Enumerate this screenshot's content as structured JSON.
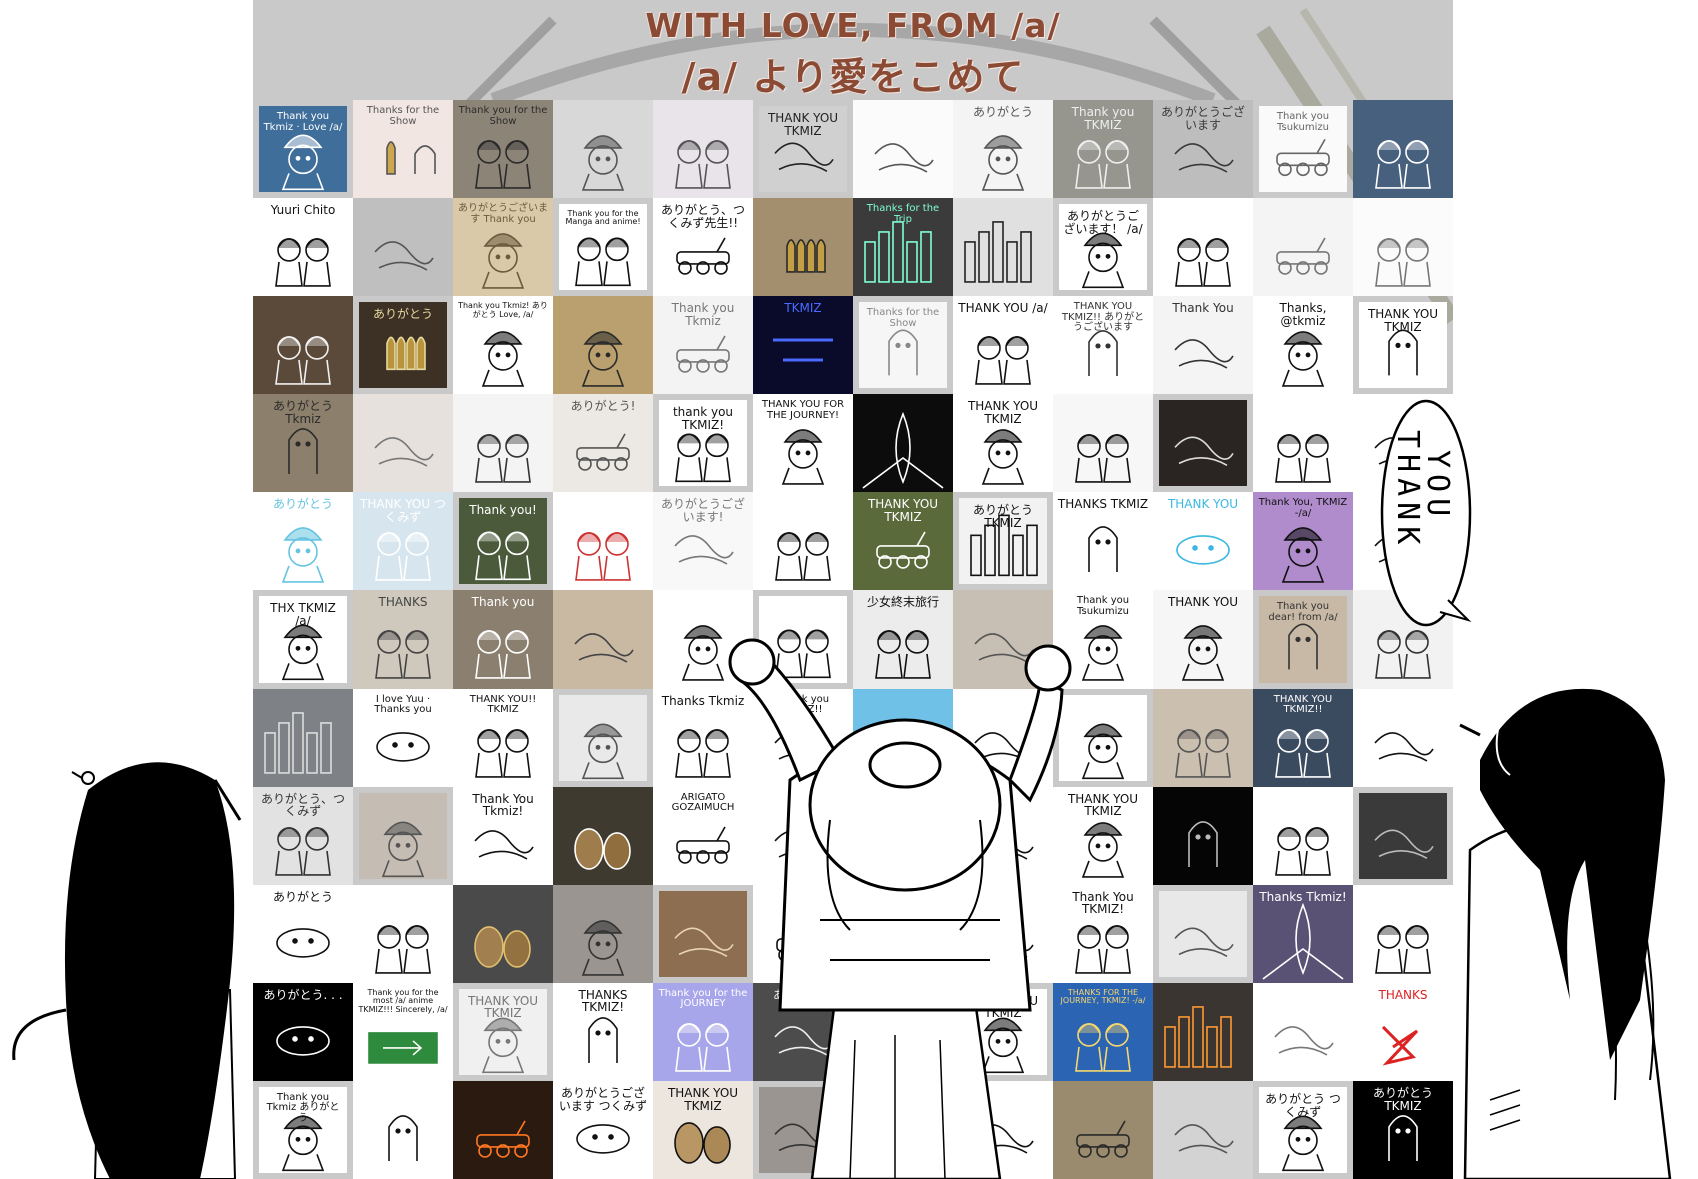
{
  "header": {
    "title_en": "WITH LOVE, FROM /a/",
    "title_jp": "/a/ より愛をこめて"
  },
  "bubble": {
    "line1": "THANK",
    "line2": "YOU"
  },
  "colors": {
    "title": "#8a4a34",
    "collage_bg": "#c9c9c9",
    "ink": "#000000"
  },
  "grid": {
    "columns": 12,
    "rows": 11
  },
  "tiles": [
    {
      "caption": "Thank you Tkmiz · Love /a/",
      "tone": "#3f6e9a",
      "ink": "#ffffff",
      "icon": "helmet-girl"
    },
    {
      "caption": "Thanks for the Show",
      "tone": "#f1e6e2",
      "ink": "#555555",
      "icon": "bullet-ghost"
    },
    {
      "caption": "Thank you for the Show",
      "tone": "#8d8478",
      "ink": "#2b2b2b",
      "icon": "two-girls"
    },
    {
      "caption": "",
      "tone": "#d8d8d8",
      "ink": "#555555",
      "icon": "helmet-girl"
    },
    {
      "caption": "",
      "tone": "#e8e4ea",
      "ink": "#555555",
      "icon": "two-girls"
    },
    {
      "caption": "THANK YOU TKMIZ",
      "tone": "#d0d0d0",
      "ink": "#222222",
      "icon": "sketch"
    },
    {
      "caption": "",
      "tone": "#fbfbfb",
      "ink": "#555555",
      "icon": "sketch"
    },
    {
      "caption": "ありがとう",
      "tone": "#f4f4f4",
      "ink": "#555555",
      "icon": "helmet-girl"
    },
    {
      "caption": "Thank you TKMIZ",
      "tone": "#96968f",
      "ink": "#eeeeee",
      "icon": "two-girls"
    },
    {
      "caption": "ありがとうございます",
      "tone": "#bdbdbd",
      "ink": "#3a3a3a",
      "icon": "sketch"
    },
    {
      "caption": "Thank you Tsukumizu",
      "tone": "#fafafa",
      "ink": "#666666",
      "icon": "kettenkrad"
    },
    {
      "caption": "",
      "tone": "#47607e",
      "ink": "#ffffff",
      "icon": "two-girls"
    },
    {
      "caption": "Yuuri Chito",
      "tone": "#ffffff",
      "ink": "#111111",
      "icon": "two-girls"
    },
    {
      "caption": "",
      "tone": "#bfbfbf",
      "ink": "#555555",
      "icon": "sketch"
    },
    {
      "caption": "ありがとうございます Thank you",
      "tone": "#d9c9a8",
      "ink": "#6b5a3c",
      "icon": "helmet-girl"
    },
    {
      "caption": "Thank you for the Manga and anime!",
      "tone": "#ffffff",
      "ink": "#111111",
      "icon": "two-girls"
    },
    {
      "caption": "ありがとう、つくみず先生!!",
      "tone": "#ffffff",
      "ink": "#111111",
      "icon": "kettenkrad"
    },
    {
      "caption": "",
      "tone": "#a38f6e",
      "ink": "#2a2a2a",
      "icon": "bullets"
    },
    {
      "caption": "Thanks for the Trip",
      "tone": "#3b3b3b",
      "ink": "#7fffd4",
      "icon": "city"
    },
    {
      "caption": "",
      "tone": "#e0e0e0",
      "ink": "#222222",
      "icon": "city"
    },
    {
      "caption": "ありがとうございます！ /a/",
      "tone": "#ffffff",
      "ink": "#111111",
      "icon": "helmet-girl"
    },
    {
      "caption": "",
      "tone": "#ffffff",
      "ink": "#111111",
      "icon": "two-girls"
    },
    {
      "caption": "",
      "tone": "#f4f4f4",
      "ink": "#777777",
      "icon": "kettenkrad"
    },
    {
      "caption": "",
      "tone": "#fbfbfb",
      "ink": "#777777",
      "icon": "two-girls"
    },
    {
      "caption": "",
      "tone": "#5b4a3a",
      "ink": "#f0f0f0",
      "icon": "two-girls"
    },
    {
      "caption": "ありがとう",
      "tone": "#3d3024",
      "ink": "#e6d9a0",
      "icon": "bullets"
    },
    {
      "caption": "Thank you Tkmiz! ありがとう Love, /a/",
      "tone": "#ffffff",
      "ink": "#111111",
      "icon": "helmet-girl"
    },
    {
      "caption": "",
      "tone": "#b9a06e",
      "ink": "#2a2a2a",
      "icon": "helmet-girl"
    },
    {
      "caption": "Thank you Tkmiz",
      "tone": "#f3f3f3",
      "ink": "#777777",
      "icon": "kettenkrad"
    },
    {
      "caption": "TKMIZ",
      "tone": "#0a0a2a",
      "ink": "#4a6bff",
      "icon": "neon"
    },
    {
      "caption": "Thanks for the Show",
      "tone": "#f6f6f6",
      "ink": "#888888",
      "icon": "ghost"
    },
    {
      "caption": "THANK YOU /a/",
      "tone": "#ffffff",
      "ink": "#111111",
      "icon": "two-girls"
    },
    {
      "caption": "THANK YOU TKMIZ!! ありがとうございます",
      "tone": "#ffffff",
      "ink": "#333333",
      "icon": "ghost"
    },
    {
      "caption": "Thank You",
      "tone": "#f4f4f4",
      "ink": "#333333",
      "icon": "sketch"
    },
    {
      "caption": "Thanks, @tkmiz",
      "tone": "#ffffff",
      "ink": "#111111",
      "icon": "helmet-girl"
    },
    {
      "caption": "THANK YOU TKMIZ",
      "tone": "#ffffff",
      "ink": "#111111",
      "icon": "ghost"
    },
    {
      "caption": "ありがとう Tkmiz",
      "tone": "#8c7f6c",
      "ink": "#2b2b2b",
      "icon": "ghost"
    },
    {
      "caption": "",
      "tone": "#e6e1dc",
      "ink": "#777777",
      "icon": "sketch"
    },
    {
      "caption": "",
      "tone": "#f4f4f4",
      "ink": "#333333",
      "icon": "two-girls"
    },
    {
      "caption": "ありがとう!",
      "tone": "#ece9e4",
      "ink": "#555555",
      "icon": "kettenkrad"
    },
    {
      "caption": "thank you TKMIZ!",
      "tone": "#ffffff",
      "ink": "#111111",
      "icon": "two-girls"
    },
    {
      "caption": "THANK YOU FOR THE JOURNEY!",
      "tone": "#ffffff",
      "ink": "#111111",
      "icon": "helmet-girl"
    },
    {
      "caption": "",
      "tone": "#0c0c0c",
      "ink": "#ffffff",
      "icon": "fish"
    },
    {
      "caption": "THANK YOU TKMIZ",
      "tone": "#ffffff",
      "ink": "#111111",
      "icon": "helmet-girl"
    },
    {
      "caption": "",
      "tone": "#f7f7f7",
      "ink": "#111111",
      "icon": "two-girls"
    },
    {
      "caption": "",
      "tone": "#2a2522",
      "ink": "#dddddd",
      "icon": "sketch"
    },
    {
      "caption": "",
      "tone": "#ffffff",
      "ink": "#111111",
      "icon": "two-girls"
    },
    {
      "caption": "",
      "tone": "#ffffff",
      "ink": "#111111",
      "icon": "sketch"
    },
    {
      "caption": "ありがとう",
      "tone": "#ffffff",
      "ink": "#66c4e0",
      "icon": "helmet-girl"
    },
    {
      "caption": "THANK YOU つくみず",
      "tone": "#d7e6ee",
      "ink": "#ffffff",
      "icon": "two-girls"
    },
    {
      "caption": "Thank you!",
      "tone": "#4a5a3a",
      "ink": "#ffffff",
      "icon": "two-girls"
    },
    {
      "caption": "",
      "tone": "#ffffff",
      "ink": "#cc3333",
      "icon": "two-girls"
    },
    {
      "caption": "ありがとうございます!",
      "tone": "#f8f8f8",
      "ink": "#777777",
      "icon": "sketch"
    },
    {
      "caption": "",
      "tone": "#ffffff",
      "ink": "#111111",
      "icon": "two-girls"
    },
    {
      "caption": "THANK YOU TKMIZ",
      "tone": "#5b6a3a",
      "ink": "#ffffff",
      "icon": "kettenkrad"
    },
    {
      "caption": "ありがとう TKMIZ",
      "tone": "#f2f2f2",
      "ink": "#111111",
      "icon": "city"
    },
    {
      "caption": "THANKS TKMIZ",
      "tone": "#ffffff",
      "ink": "#111111",
      "icon": "ghost"
    },
    {
      "caption": "THANK YOU",
      "tone": "#ffffff",
      "ink": "#39b8e0",
      "icon": "face"
    },
    {
      "caption": "Thank You, TKMIZ -/a/",
      "tone": "#b08ccc",
      "ink": "#111111",
      "icon": "helmet-girl"
    },
    {
      "caption": "",
      "tone": "#ffffff",
      "ink": "#111111",
      "icon": "sketch"
    },
    {
      "caption": "THX TKMIZ /a/",
      "tone": "#ffffff",
      "ink": "#111111",
      "icon": "helmet-girl"
    },
    {
      "caption": "THANKS",
      "tone": "#cfc8bd",
      "ink": "#444444",
      "icon": "two-girls"
    },
    {
      "caption": "Thank you",
      "tone": "#8b7f6f",
      "ink": "#ffffff",
      "icon": "two-girls"
    },
    {
      "caption": "",
      "tone": "#c9b9a3",
      "ink": "#444444",
      "icon": "sketch"
    },
    {
      "caption": "",
      "tone": "#ffffff",
      "ink": "#111111",
      "icon": "helmet-girl"
    },
    {
      "caption": "",
      "tone": "#ffffff",
      "ink": "#111111",
      "icon": "two-girls"
    },
    {
      "caption": "少女終末旅行",
      "tone": "#ececec",
      "ink": "#111111",
      "icon": "two-girls"
    },
    {
      "caption": "",
      "tone": "#c7bfb3",
      "ink": "#555555",
      "icon": "sketch"
    },
    {
      "caption": "Thank you Tsukumizu",
      "tone": "#ffffff",
      "ink": "#111111",
      "icon": "helmet-girl"
    },
    {
      "caption": "THANK YOU",
      "tone": "#f6f6f6",
      "ink": "#111111",
      "icon": "helmet-girl"
    },
    {
      "caption": "Thank you dear! from /a/",
      "tone": "#c8b9a6",
      "ink": "#333333",
      "icon": "ghost"
    },
    {
      "caption": "",
      "tone": "#f2f2f2",
      "ink": "#333333",
      "icon": "two-girls"
    },
    {
      "caption": "",
      "tone": "#7e8185",
      "ink": "#dddddd",
      "icon": "city"
    },
    {
      "caption": "I love Yuu · Thanks you",
      "tone": "#ffffff",
      "ink": "#111111",
      "icon": "face"
    },
    {
      "caption": "THANK YOU!! TKMIZ",
      "tone": "#ffffff",
      "ink": "#111111",
      "icon": "two-girls"
    },
    {
      "caption": "",
      "tone": "#e9e9e9",
      "ink": "#555555",
      "icon": "helmet-girl"
    },
    {
      "caption": "Thanks Tkmiz",
      "tone": "#ffffff",
      "ink": "#111111",
      "icon": "two-girls"
    },
    {
      "caption": "Thank you TKMIZ!!",
      "tone": "#ffffff",
      "ink": "#111111",
      "icon": "sketch"
    },
    {
      "caption": "",
      "tone": "#6fc1e8",
      "ink": "#ffffff",
      "icon": "kettenkrad"
    },
    {
      "caption": "",
      "tone": "#ffffff",
      "ink": "#111111",
      "icon": "sketch"
    },
    {
      "caption": "",
      "tone": "#ffffff",
      "ink": "#111111",
      "icon": "helmet-girl"
    },
    {
      "caption": "",
      "tone": "#cbbfb0",
      "ink": "#555555",
      "icon": "two-girls"
    },
    {
      "caption": "THANK YOU TKMIZ!!",
      "tone": "#3a4a5f",
      "ink": "#ffffff",
      "icon": "two-girls"
    },
    {
      "caption": "",
      "tone": "#ffffff",
      "ink": "#111111",
      "icon": "sketch"
    },
    {
      "caption": "ありがとう、つくみず",
      "tone": "#e2e2e2",
      "ink": "#333333",
      "icon": "two-girls"
    },
    {
      "caption": "",
      "tone": "#c5bdb3",
      "ink": "#555555",
      "icon": "helmet-girl"
    },
    {
      "caption": "Thank You Tkmiz!",
      "tone": "#ffffff",
      "ink": "#111111",
      "icon": "sketch"
    },
    {
      "caption": "",
      "tone": "#3e3a30",
      "ink": "#ffffff",
      "icon": "potato"
    },
    {
      "caption": "ARIGATO GOZAIMUCH",
      "tone": "#ffffff",
      "ink": "#111111",
      "icon": "kettenkrad"
    },
    {
      "caption": "",
      "tone": "#ffffff",
      "ink": "#111111",
      "icon": "sketch"
    },
    {
      "caption": "",
      "tone": "#ffffff",
      "ink": "#111111",
      "icon": "sketch"
    },
    {
      "caption": "",
      "tone": "#ffffff",
      "ink": "#111111",
      "icon": "sketch"
    },
    {
      "caption": "THANK YOU TKMIZ",
      "tone": "#ffffff",
      "ink": "#111111",
      "icon": "helmet-girl"
    },
    {
      "caption": "",
      "tone": "#050505",
      "ink": "#bbbbbb",
      "icon": "ghost"
    },
    {
      "caption": "",
      "tone": "#ffffff",
      "ink": "#111111",
      "icon": "two-girls"
    },
    {
      "caption": "",
      "tone": "#3a3a3a",
      "ink": "#bbbbbb",
      "icon": "sketch"
    },
    {
      "caption": "ありがとう",
      "tone": "#ffffff",
      "ink": "#111111",
      "icon": "face"
    },
    {
      "caption": "",
      "tone": "#ffffff",
      "ink": "#111111",
      "icon": "two-girls"
    },
    {
      "caption": "",
      "tone": "#4a4a4a",
      "ink": "#e0c070",
      "icon": "potato"
    },
    {
      "caption": "",
      "tone": "#9a9590",
      "ink": "#333333",
      "icon": "helmet-girl"
    },
    {
      "caption": "",
      "tone": "#8d6e50",
      "ink": "#e8d5b0",
      "icon": "sketch"
    },
    {
      "caption": "",
      "tone": "#ffffff",
      "ink": "#111111",
      "icon": "kettenkrad"
    },
    {
      "caption": "",
      "tone": "#ffffff",
      "ink": "#111111",
      "icon": "sketch"
    },
    {
      "caption": "",
      "tone": "#ffffff",
      "ink": "#111111",
      "icon": "sketch"
    },
    {
      "caption": "Thank You TKMIZ!",
      "tone": "#ffffff",
      "ink": "#111111",
      "icon": "two-girls"
    },
    {
      "caption": "",
      "tone": "#e8e8e8",
      "ink": "#555555",
      "icon": "sketch"
    },
    {
      "caption": "Thanks Tkmiz!",
      "tone": "#5a5275",
      "ink": "#ffffff",
      "icon": "fish"
    },
    {
      "caption": "",
      "tone": "#ffffff",
      "ink": "#111111",
      "icon": "two-girls"
    },
    {
      "caption": "ありがとう. . .",
      "tone": "#000000",
      "ink": "#ffffff",
      "icon": "face"
    },
    {
      "caption": "Thank you for the most /a/ anime TKMIZ!!! Sincerely, /a/",
      "tone": "#ffffff",
      "ink": "#111111",
      "icon": "exit-sign"
    },
    {
      "caption": "THANK YOU TKMIZ",
      "tone": "#f0f0f0",
      "ink": "#777777",
      "icon": "helmet-girl"
    },
    {
      "caption": "THANKS TKMIZ!",
      "tone": "#ffffff",
      "ink": "#111111",
      "icon": "ghost"
    },
    {
      "caption": "Thank you for the JOURNEY",
      "tone": "#a8a6ea",
      "ink": "#ffffff",
      "icon": "two-girls"
    },
    {
      "caption": "ありがとう TKMIZ",
      "tone": "#4c4c4c",
      "ink": "#eeeeee",
      "icon": "sketch"
    },
    {
      "caption": "",
      "tone": "#ffffff",
      "ink": "#111111",
      "icon": "sketch"
    },
    {
      "caption": "THANK YOU TKMIZ",
      "tone": "#ffffff",
      "ink": "#111111",
      "icon": "helmet-girl"
    },
    {
      "caption": "THANKS FOR THE JOURNEY, TKMIZ! -/a/",
      "tone": "#2c64b4",
      "ink": "#f5d76e",
      "icon": "two-girls"
    },
    {
      "caption": "",
      "tone": "#3a3530",
      "ink": "#ff9933",
      "icon": "city"
    },
    {
      "caption": "",
      "tone": "#ffffff",
      "ink": "#777777",
      "icon": "sketch"
    },
    {
      "caption": "THANKS",
      "tone": "#ffffff",
      "ink": "#dd2222",
      "icon": "scribble"
    },
    {
      "caption": "Thank you Tkmiz ありがとう",
      "tone": "#ffffff",
      "ink": "#111111",
      "icon": "helmet-girl"
    },
    {
      "caption": "",
      "tone": "#ffffff",
      "ink": "#111111",
      "icon": "ghost"
    },
    {
      "caption": "",
      "tone": "#2a1a10",
      "ink": "#ff7722",
      "icon": "kettenkrad"
    },
    {
      "caption": "ありがとうございます つくみず",
      "tone": "#ffffff",
      "ink": "#111111",
      "icon": "face"
    },
    {
      "caption": "THANK YOU TKMIZ",
      "tone": "#ece6de",
      "ink": "#111111",
      "icon": "potato"
    },
    {
      "caption": "",
      "tone": "#9a9590",
      "ink": "#333333",
      "icon": "sketch"
    },
    {
      "caption": "",
      "tone": "#ffffff",
      "ink": "#111111",
      "icon": "sketch"
    },
    {
      "caption": "",
      "tone": "#ffffff",
      "ink": "#111111",
      "icon": "sketch"
    },
    {
      "caption": "",
      "tone": "#9b8b6e",
      "ink": "#2a2a2a",
      "icon": "kettenkrad"
    },
    {
      "caption": "",
      "tone": "#d3d3d3",
      "ink": "#555555",
      "icon": "sketch"
    },
    {
      "caption": "ありがとう つくみず",
      "tone": "#ffffff",
      "ink": "#111111",
      "icon": "helmet-girl"
    },
    {
      "caption": "ありがとう TKMIZ",
      "tone": "#000000",
      "ink": "#ffffff",
      "icon": "ghost"
    }
  ]
}
